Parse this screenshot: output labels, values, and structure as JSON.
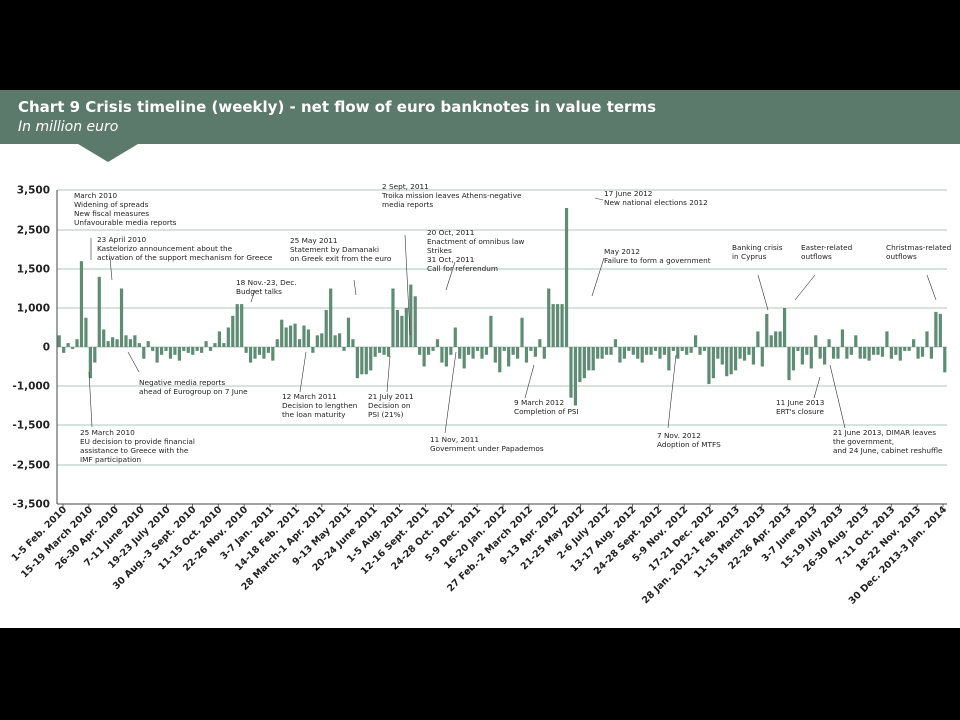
{
  "header": {
    "title": "Chart 9  Crisis timeline (weekly) - net flow of euro banknotes in value terms",
    "subtitle": "In million euro"
  },
  "colors": {
    "bar": "#5e8c74",
    "header": "#5c7a6b",
    "grid": "#9bb3a4"
  },
  "chart_data": {
    "type": "bar",
    "title": "Chart 9  Crisis timeline (weekly) - net flow of euro banknotes in value terms",
    "ylabel": "In million euro",
    "ylim": [
      -3500,
      3500
    ],
    "yticks": [
      3500,
      2500,
      1500,
      1000,
      0,
      -1000,
      -1500,
      -2500,
      -3500
    ],
    "yticklabels": [
      "3,500",
      "2,500",
      "1,500",
      "1,000",
      "0",
      "-1,000",
      "-1,500",
      "-2,500",
      "-3,500"
    ],
    "grid": true,
    "xticklabels": [
      "1-5 Feb. 2010",
      "15-19 March 2010",
      "26-30 Apr. 2010",
      "7-11 June 2010",
      "19-23 July 2010",
      "30 Aug.-3 Sept. 2010",
      "11-15 Oct. 2010",
      "22-26 Nov. 2010",
      "3-7 Jan. 2011",
      "14-18 Feb. 2011",
      "28 March-1 Apr. 2011",
      "9-13 May 2011",
      "20-24 June 2011",
      "1-5 Aug. 2011",
      "12-16 Sept. 2011",
      "24-28 Oct. 2011",
      "5-9 Dec. 2011",
      "16-20 Jan. 2012",
      "27 Feb.-2 March 2012",
      "9-13 Apr. 2012",
      "21-25 May 2012",
      "2-6 July 2012",
      "13-17 Aug. 2012",
      "24-28 Sept. 2012",
      "5-9 Nov. 2012",
      "17-21 Dec. 2012",
      "28 Jan. 2012-1 Feb. 2013",
      "11-15 March 2013",
      "22-26 Apr. 2013",
      "3-7 June 2013",
      "15-19 July 2013",
      "26-30 Aug. 2013",
      "7-11 Oct. 2013",
      "18-22 Nov. 2013",
      "30 Dec. 2013-3 Jan. 2014"
    ],
    "values": [
      300,
      -150,
      100,
      -50,
      200,
      1700,
      750,
      -800,
      -400,
      1400,
      450,
      150,
      250,
      200,
      1250,
      300,
      200,
      300,
      100,
      -300,
      150,
      -100,
      -400,
      -200,
      -100,
      -300,
      -200,
      -350,
      -100,
      -150,
      -200,
      -100,
      -150,
      150,
      -100,
      100,
      400,
      100,
      500,
      800,
      1050,
      1050,
      -150,
      -400,
      -300,
      -200,
      -300,
      -150,
      -350,
      200,
      700,
      500,
      550,
      600,
      200,
      550,
      450,
      -150,
      300,
      350,
      950,
      1250,
      300,
      350,
      -100,
      750,
      200,
      -800,
      -700,
      -700,
      -600,
      -250,
      -150,
      -200,
      -250,
      1250,
      950,
      800,
      1000,
      1300,
      1150,
      -200,
      -500,
      -200,
      -100,
      200,
      -400,
      -500,
      -200,
      500,
      -300,
      -550,
      -200,
      -300,
      -100,
      -300,
      -200,
      800,
      -400,
      -650,
      -100,
      -500,
      -200,
      -300,
      750,
      -400,
      -100,
      -250,
      200,
      -300,
      1250,
      1050,
      1050,
      1050,
      3050,
      -1150,
      -1250,
      -900,
      -800,
      -600,
      -600,
      -300,
      -300,
      -200,
      -200,
      200,
      -400,
      -300,
      -100,
      -200,
      -300,
      -400,
      -200,
      -200,
      -100,
      -300,
      -200,
      -600,
      -100,
      -300,
      -100,
      -200,
      -150,
      300,
      -200,
      -100,
      -950,
      -800,
      -300,
      -450,
      -750,
      -700,
      -600,
      -300,
      -350,
      -200,
      -450,
      400,
      -500,
      850,
      300,
      400,
      400,
      1000,
      -850,
      -600,
      -100,
      -450,
      -200,
      -550,
      300,
      -300,
      -450,
      200,
      -300,
      -300,
      450,
      -300,
      -200,
      300,
      -300,
      -300,
      -350,
      -200,
      -200,
      -250,
      400,
      -300,
      -200,
      -350,
      -100,
      -100,
      200,
      -300,
      -250,
      400,
      -300,
      900,
      850,
      -650
    ]
  },
  "annotations": [
    {
      "id": "a1",
      "lines": [
        "March 2010",
        "Widening of spreads",
        "New fiscal measures",
        "Unfavourable media reports"
      ]
    },
    {
      "id": "a2",
      "lines": [
        "23 April 2010",
        "Kastelorizo announcement about the",
        "activation of the support mechanism for Greece"
      ]
    },
    {
      "id": "a3",
      "lines": [
        "Negative media reports",
        "ahead of Eurogroup on 7 June"
      ]
    },
    {
      "id": "a4",
      "lines": [
        "25 March 2010",
        "EU decision to provide financial",
        "assistance to Greece with the",
        "IMF participation"
      ]
    },
    {
      "id": "a5",
      "lines": [
        "18 Nov.-23, Dec.",
        "Budget talks"
      ]
    },
    {
      "id": "a6",
      "lines": [
        "25 May 2011",
        "Statement by Damanaki",
        "on Greek exit from the euro"
      ]
    },
    {
      "id": "a7",
      "lines": [
        "12 March 2011",
        "Decision to lengthen",
        "the loan maturity"
      ]
    },
    {
      "id": "a8",
      "lines": [
        "21 July 2011",
        "Decision on",
        "PSI (21%)"
      ]
    },
    {
      "id": "a9",
      "lines": [
        "2 Sept, 2011",
        "Troika mission leaves Athens-negative",
        "media reports"
      ]
    },
    {
      "id": "a10",
      "lines": [
        "20 Oct, 2011",
        "Enactment of omnibus law",
        "Strikes",
        "31 Oct, 2011",
        "Call for referendum"
      ]
    },
    {
      "id": "a11",
      "lines": [
        "11 Nov, 2011",
        "Government under Papademos"
      ]
    },
    {
      "id": "a12",
      "lines": [
        "9 March 2012",
        "Completion of PSI"
      ]
    },
    {
      "id": "a13",
      "lines": [
        "17 June 2012",
        "New national elections 2012"
      ]
    },
    {
      "id": "a14",
      "lines": [
        "May 2012",
        "Failure to form a government"
      ]
    },
    {
      "id": "a15",
      "lines": [
        "7 Nov. 2012",
        "Adoption of MTFS"
      ]
    },
    {
      "id": "a16",
      "lines": [
        "Banking crisis",
        "in Cyprus"
      ]
    },
    {
      "id": "a17",
      "lines": [
        "Easter-related",
        "outflows"
      ]
    },
    {
      "id": "a18",
      "lines": [
        "11 June 2013",
        "ERT's closure"
      ]
    },
    {
      "id": "a19",
      "lines": [
        "21 June 2013, DIMAR leaves",
        "the government,",
        "and 24 June, cabinet reshuffle"
      ]
    },
    {
      "id": "a20",
      "lines": [
        "Christmas-related",
        "outflows"
      ]
    }
  ]
}
